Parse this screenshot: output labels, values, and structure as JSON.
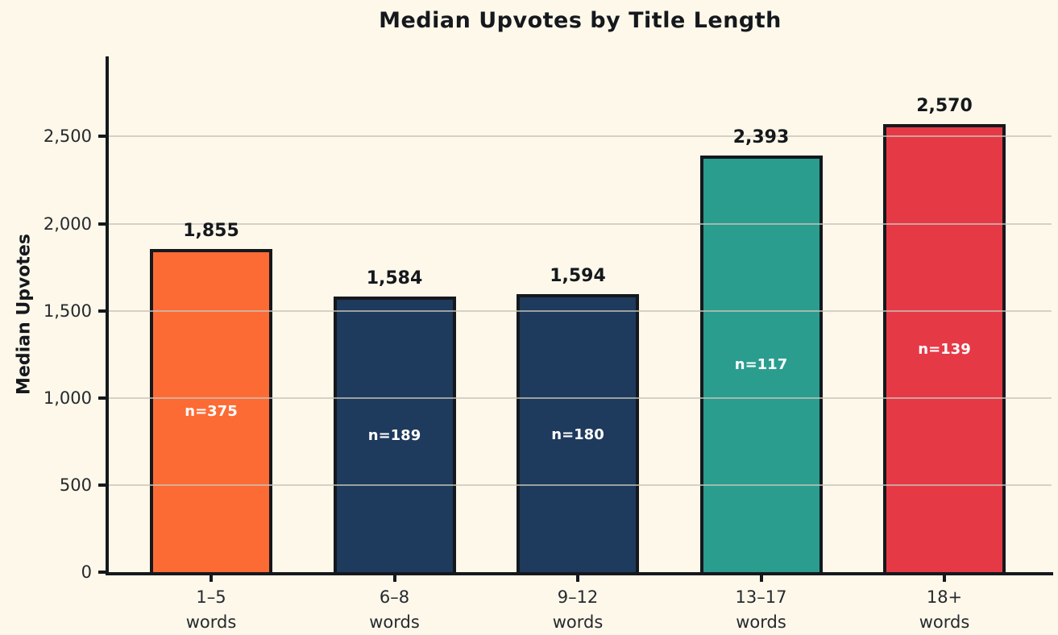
{
  "title": "Median Upvotes by Title Length",
  "ylabel": "Median Upvotes",
  "colors": {
    "background": "#FDF8EA",
    "spine": "#15181c",
    "gridline": "#C7C4B8",
    "value_label_text": "#15181c",
    "n_label_text": "#ffffff"
  },
  "chart_data": {
    "type": "bar",
    "title": "Median Upvotes by Title Length",
    "xlabel": "",
    "ylabel": "Median Upvotes",
    "categories": [
      "1–5\nwords",
      "6–8\nwords",
      "9–12\nwords",
      "13–17\nwords",
      "18+\nwords"
    ],
    "values": [
      1855,
      1584,
      1594,
      2393,
      2570
    ],
    "value_labels": [
      "1,855",
      "1,584",
      "1,594",
      "2,393",
      "2,570"
    ],
    "sample_sizes": [
      375,
      189,
      180,
      117,
      139
    ],
    "n_labels": [
      "n=375",
      "n=189",
      "n=180",
      "n=117",
      "n=139"
    ],
    "bar_colors": [
      "#FD6B35",
      "#1E3A5C",
      "#1E3A5C",
      "#2A9D8F",
      "#E63946"
    ],
    "ylim": [
      0,
      2960
    ],
    "yticks": [
      0,
      500,
      1000,
      1500,
      2000,
      2500
    ],
    "ytick_labels": [
      "0",
      "500",
      "1,000",
      "1,500",
      "2,000",
      "2,500"
    ],
    "grid": "horizontal gridlines at yticks, drawn over bars",
    "legend": "none"
  }
}
